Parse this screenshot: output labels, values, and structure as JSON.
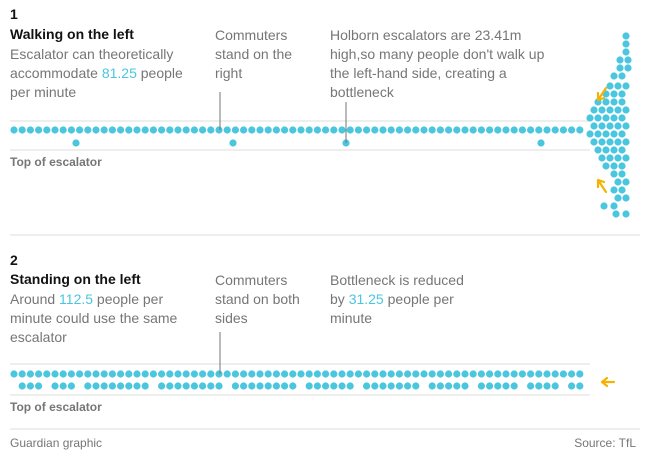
{
  "colors": {
    "dot": "#4bc6df",
    "arrow": "#f5b200",
    "rule": "#dcdcdc",
    "leader": "#767676"
  },
  "panel1": {
    "number": "1",
    "heading": "Walking on the left",
    "desc_before": "Escalator can theoretically accommodate ",
    "desc_highlight": "81.25",
    "desc_after": " people per minute",
    "note_commuters": "Commuters stand on the right",
    "note_holborn": "Holborn escalators are 23.41m high,so many people don't walk up the left-hand side, creating a bottleneck",
    "escalator_label": "Top of escalator"
  },
  "panel2": {
    "number": "2",
    "heading": "Standing on the left",
    "desc_before": "Around ",
    "desc_highlight": "112.5",
    "desc_after": " people per minute could use the same escalator",
    "note_commuters": "Commuters stand on both sides",
    "note_bottleneck_before": "Bottleneck is reduced by ",
    "note_bottleneck_highlight": "31.25",
    "note_bottleneck_after": " people per minute",
    "escalator_label": "Top of escalator"
  },
  "footer": {
    "credit": "Guardian graphic",
    "source": "Source: TfL"
  }
}
